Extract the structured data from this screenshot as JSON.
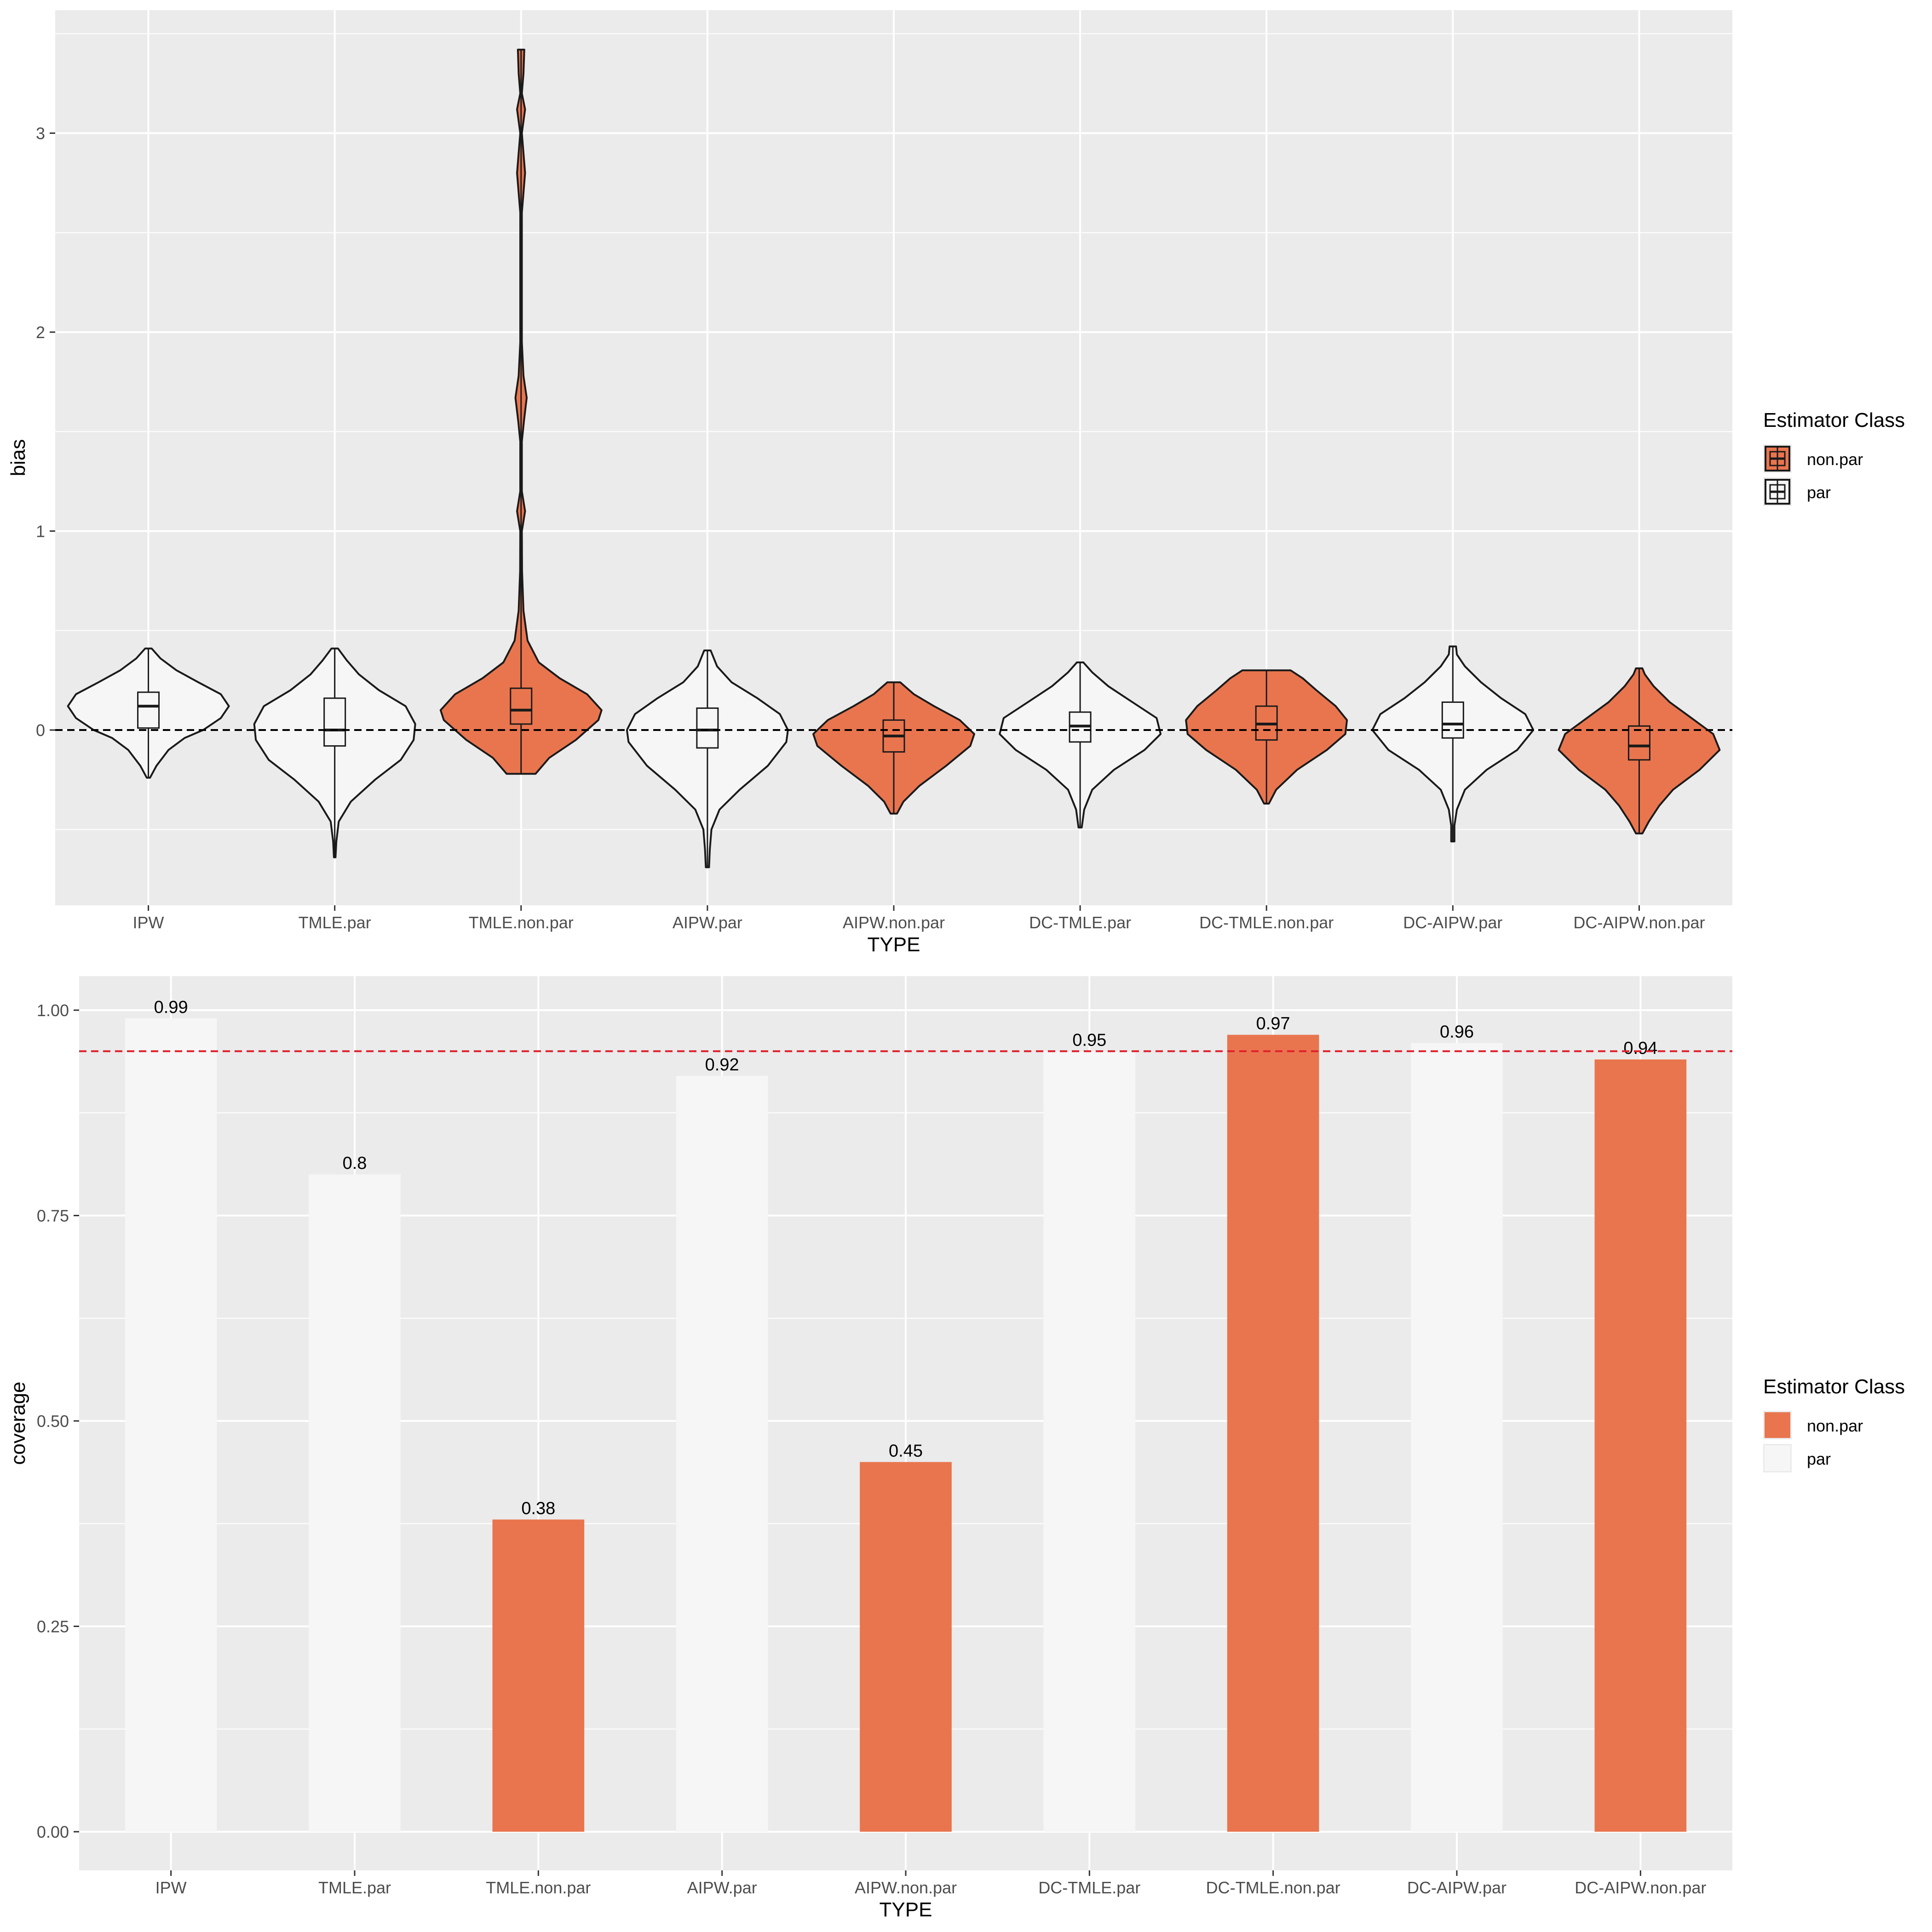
{
  "colors": {
    "panel_bg": "#ebebeb",
    "grid": "#ffffff",
    "non_par_fill": "#e9754e",
    "par_fill": "#f6f6f6",
    "outline": "#1a1a1a",
    "zero_line": "#000000",
    "nominal_line": "#e0202a",
    "text": "#000000",
    "tick_text": "#4d4d4d"
  },
  "legend": {
    "title": "Estimator Class",
    "entries": [
      {
        "key": "non.par",
        "label": "non.par"
      },
      {
        "key": "par",
        "label": "par"
      }
    ]
  },
  "chart_data": [
    {
      "type": "violin",
      "xlabel": "TYPE",
      "ylabel": "bias",
      "ylim": [
        -0.88,
        3.45
      ],
      "yticks": [
        0,
        1,
        2,
        3
      ],
      "grid": true,
      "legend_position": "right",
      "reference_line": {
        "y": 0,
        "style": "dashed"
      },
      "categories": [
        "IPW",
        "TMLE.par",
        "TMLE.non.par",
        "AIPW.par",
        "AIPW.non.par",
        "DC-TMLE.par",
        "DC-TMLE.non.par",
        "DC-AIPW.par",
        "DC-AIPW.non.par"
      ],
      "series": [
        {
          "type": "IPW",
          "class": "par",
          "min": -0.24,
          "max": 0.41,
          "q1": 0.01,
          "median": 0.12,
          "q3": 0.19,
          "profile": [
            [
              -0.24,
              0.02
            ],
            [
              -0.18,
              0.1
            ],
            [
              -0.1,
              0.25
            ],
            [
              -0.04,
              0.45
            ],
            [
              0.0,
              0.68
            ],
            [
              0.06,
              0.9
            ],
            [
              0.12,
              1.0
            ],
            [
              0.18,
              0.9
            ],
            [
              0.24,
              0.62
            ],
            [
              0.3,
              0.35
            ],
            [
              0.36,
              0.15
            ],
            [
              0.41,
              0.04
            ]
          ]
        },
        {
          "type": "TMLE.par",
          "class": "par",
          "min": -0.64,
          "max": 0.41,
          "q1": -0.08,
          "median": 0.0,
          "q3": 0.16,
          "profile": [
            [
              -0.64,
              0.01
            ],
            [
              -0.56,
              0.02
            ],
            [
              -0.46,
              0.05
            ],
            [
              -0.36,
              0.2
            ],
            [
              -0.25,
              0.5
            ],
            [
              -0.15,
              0.82
            ],
            [
              -0.05,
              0.98
            ],
            [
              0.03,
              1.0
            ],
            [
              0.12,
              0.88
            ],
            [
              0.2,
              0.55
            ],
            [
              0.28,
              0.3
            ],
            [
              0.35,
              0.15
            ],
            [
              0.41,
              0.04
            ]
          ]
        },
        {
          "type": "TMLE.non.par",
          "class": "non.par",
          "min": -0.22,
          "max": 3.42,
          "q1": 0.03,
          "median": 0.1,
          "q3": 0.21,
          "profile": [
            [
              -0.22,
              0.18
            ],
            [
              -0.14,
              0.35
            ],
            [
              -0.05,
              0.68
            ],
            [
              0.05,
              0.96
            ],
            [
              0.1,
              1.0
            ],
            [
              0.18,
              0.82
            ],
            [
              0.26,
              0.48
            ],
            [
              0.34,
              0.22
            ],
            [
              0.45,
              0.08
            ],
            [
              0.6,
              0.03
            ],
            [
              0.8,
              0.012
            ],
            [
              1.0,
              0.01
            ],
            [
              1.1,
              0.05
            ],
            [
              1.2,
              0.01
            ],
            [
              1.45,
              0.01
            ],
            [
              1.55,
              0.035
            ],
            [
              1.67,
              0.07
            ],
            [
              1.78,
              0.03
            ],
            [
              1.95,
              0.01
            ],
            [
              2.6,
              0.01
            ],
            [
              2.8,
              0.05
            ],
            [
              3.0,
              0.01
            ],
            [
              3.12,
              0.05
            ],
            [
              3.2,
              0.01
            ],
            [
              3.3,
              0.03
            ],
            [
              3.42,
              0.04
            ]
          ]
        },
        {
          "type": "AIPW.par",
          "class": "par",
          "min": -0.69,
          "max": 0.4,
          "q1": -0.09,
          "median": 0.0,
          "q3": 0.11,
          "profile": [
            [
              -0.69,
              0.02
            ],
            [
              -0.6,
              0.03
            ],
            [
              -0.5,
              0.05
            ],
            [
              -0.4,
              0.15
            ],
            [
              -0.3,
              0.4
            ],
            [
              -0.18,
              0.75
            ],
            [
              -0.06,
              0.98
            ],
            [
              0.0,
              1.0
            ],
            [
              0.08,
              0.9
            ],
            [
              0.16,
              0.62
            ],
            [
              0.24,
              0.3
            ],
            [
              0.32,
              0.12
            ],
            [
              0.4,
              0.04
            ]
          ]
        },
        {
          "type": "AIPW.non.par",
          "class": "non.par",
          "min": -0.42,
          "max": 0.24,
          "q1": -0.11,
          "median": -0.03,
          "q3": 0.05,
          "profile": [
            [
              -0.42,
              0.04
            ],
            [
              -0.36,
              0.12
            ],
            [
              -0.28,
              0.32
            ],
            [
              -0.18,
              0.65
            ],
            [
              -0.08,
              0.95
            ],
            [
              -0.02,
              1.0
            ],
            [
              0.05,
              0.82
            ],
            [
              0.12,
              0.5
            ],
            [
              0.18,
              0.25
            ],
            [
              0.24,
              0.08
            ]
          ]
        },
        {
          "type": "DC-TMLE.par",
          "class": "par",
          "min": -0.49,
          "max": 0.34,
          "q1": -0.06,
          "median": 0.02,
          "q3": 0.09,
          "profile": [
            [
              -0.49,
              0.02
            ],
            [
              -0.4,
              0.05
            ],
            [
              -0.3,
              0.15
            ],
            [
              -0.2,
              0.42
            ],
            [
              -0.1,
              0.8
            ],
            [
              -0.02,
              1.0
            ],
            [
              0.06,
              0.95
            ],
            [
              0.14,
              0.65
            ],
            [
              0.22,
              0.35
            ],
            [
              0.29,
              0.15
            ],
            [
              0.34,
              0.04
            ]
          ]
        },
        {
          "type": "DC-TMLE.non.par",
          "class": "non.par",
          "min": -0.37,
          "max": 0.3,
          "q1": -0.05,
          "median": 0.03,
          "q3": 0.12,
          "profile": [
            [
              -0.37,
              0.03
            ],
            [
              -0.3,
              0.12
            ],
            [
              -0.2,
              0.38
            ],
            [
              -0.1,
              0.75
            ],
            [
              -0.02,
              0.98
            ],
            [
              0.05,
              1.0
            ],
            [
              0.12,
              0.86
            ],
            [
              0.2,
              0.62
            ],
            [
              0.26,
              0.45
            ],
            [
              0.3,
              0.3
            ]
          ]
        },
        {
          "type": "DC-AIPW.par",
          "class": "par",
          "min": -0.56,
          "max": 0.42,
          "q1": -0.04,
          "median": 0.03,
          "q3": 0.14,
          "profile": [
            [
              -0.56,
              0.02
            ],
            [
              -0.48,
              0.02
            ],
            [
              -0.4,
              0.05
            ],
            [
              -0.3,
              0.15
            ],
            [
              -0.2,
              0.42
            ],
            [
              -0.1,
              0.8
            ],
            [
              0.0,
              1.0
            ],
            [
              0.08,
              0.9
            ],
            [
              0.16,
              0.6
            ],
            [
              0.24,
              0.35
            ],
            [
              0.32,
              0.15
            ],
            [
              0.38,
              0.05
            ],
            [
              0.42,
              0.04
            ]
          ]
        },
        {
          "type": "DC-AIPW.non.par",
          "class": "non.par",
          "min": -0.52,
          "max": 0.31,
          "q1": -0.15,
          "median": -0.08,
          "q3": 0.02,
          "profile": [
            [
              -0.52,
              0.04
            ],
            [
              -0.46,
              0.12
            ],
            [
              -0.38,
              0.25
            ],
            [
              -0.3,
              0.42
            ],
            [
              -0.2,
              0.75
            ],
            [
              -0.1,
              1.0
            ],
            [
              -0.02,
              0.92
            ],
            [
              0.06,
              0.65
            ],
            [
              0.14,
              0.38
            ],
            [
              0.22,
              0.18
            ],
            [
              0.28,
              0.07
            ],
            [
              0.31,
              0.04
            ]
          ]
        }
      ]
    },
    {
      "type": "bar",
      "xlabel": "TYPE",
      "ylabel": "coverage",
      "ylim": [
        -0.05,
        1.05
      ],
      "yticks": [
        0.0,
        0.25,
        0.5,
        0.75,
        1.0
      ],
      "ytick_labels": [
        "0.00",
        "0.25",
        "0.50",
        "0.75",
        "1.00"
      ],
      "grid": true,
      "legend_position": "right",
      "reference_line": {
        "y": 0.95,
        "style": "dashed"
      },
      "categories": [
        "IPW",
        "TMLE.par",
        "TMLE.non.par",
        "AIPW.par",
        "AIPW.non.par",
        "DC-TMLE.par",
        "DC-TMLE.non.par",
        "DC-AIPW.par",
        "DC-AIPW.non.par"
      ],
      "values": [
        0.99,
        0.8,
        0.38,
        0.92,
        0.45,
        0.95,
        0.97,
        0.96,
        0.94
      ],
      "value_labels": [
        "0.99",
        "0.8",
        "0.38",
        "0.92",
        "0.45",
        "0.95",
        "0.97",
        "0.96",
        "0.94"
      ],
      "classes": [
        "par",
        "par",
        "non.par",
        "par",
        "non.par",
        "par",
        "non.par",
        "par",
        "non.par"
      ]
    }
  ]
}
